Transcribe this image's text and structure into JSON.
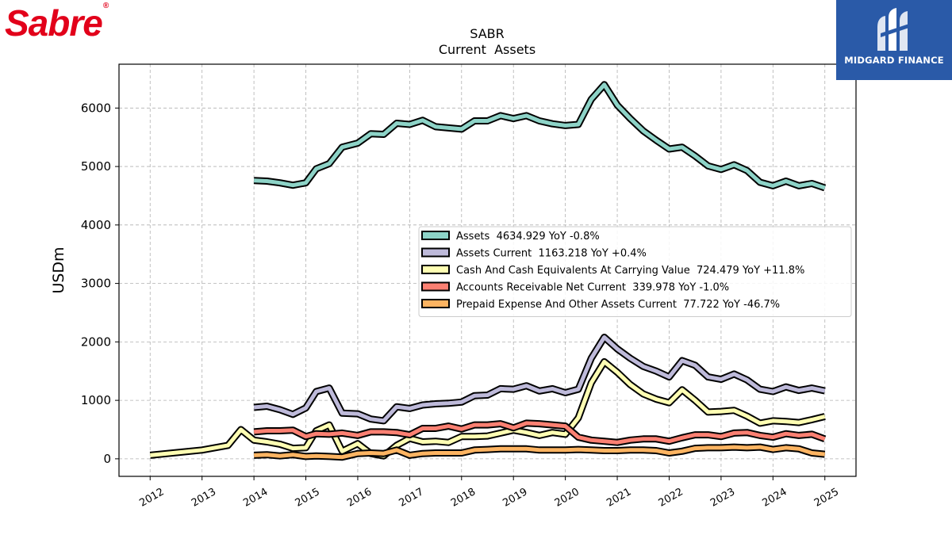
{
  "brand": {
    "left_logo": "Sabre",
    "right_logo": "MIDGARD FINANCE"
  },
  "colors": {
    "assets": "#8dd3c7",
    "assets_current": "#bebada",
    "cash": "#ffffb3",
    "receivables": "#fb8072",
    "prepaid": "#fdb462",
    "outline": "#000000",
    "grid": "#b0b0b0",
    "logo_red": "#e2001a",
    "logo_blue": "#2a5aa8"
  },
  "chart_data": {
    "type": "line",
    "title": "SABR",
    "subtitle": "Current  Assets",
    "xlabel": "",
    "ylabel": "USDm",
    "xlim": [
      2011.4,
      2025.6
    ],
    "ylim": [
      -300,
      6750
    ],
    "xticks": [
      "2012",
      "2013",
      "2014",
      "2015",
      "2016",
      "2017",
      "2018",
      "2019",
      "2020",
      "2021",
      "2022",
      "2023",
      "2024",
      "2025"
    ],
    "yticks": [
      0,
      1000,
      2000,
      3000,
      4000,
      5000,
      6000
    ],
    "grid": true,
    "legend_position": "center-right",
    "series": [
      {
        "key": "assets",
        "legend": "Assets  4634.929 YoY -0.8%",
        "points": [
          [
            2014.0,
            4760
          ],
          [
            2014.25,
            4750
          ],
          [
            2014.5,
            4720
          ],
          [
            2014.75,
            4680
          ],
          [
            2015.0,
            4720
          ],
          [
            2015.2,
            4960
          ],
          [
            2015.45,
            5050
          ],
          [
            2015.7,
            5330
          ],
          [
            2016.0,
            5400
          ],
          [
            2016.25,
            5560
          ],
          [
            2016.5,
            5550
          ],
          [
            2016.75,
            5740
          ],
          [
            2017.0,
            5720
          ],
          [
            2017.25,
            5790
          ],
          [
            2017.5,
            5680
          ],
          [
            2017.75,
            5660
          ],
          [
            2018.0,
            5640
          ],
          [
            2018.25,
            5780
          ],
          [
            2018.5,
            5780
          ],
          [
            2018.75,
            5870
          ],
          [
            2019.0,
            5820
          ],
          [
            2019.25,
            5870
          ],
          [
            2019.5,
            5780
          ],
          [
            2019.75,
            5730
          ],
          [
            2020.0,
            5700
          ],
          [
            2020.25,
            5720
          ],
          [
            2020.5,
            6150
          ],
          [
            2020.75,
            6400
          ],
          [
            2021.0,
            6050
          ],
          [
            2021.25,
            5820
          ],
          [
            2021.5,
            5610
          ],
          [
            2021.75,
            5450
          ],
          [
            2022.0,
            5300
          ],
          [
            2022.25,
            5330
          ],
          [
            2022.5,
            5180
          ],
          [
            2022.75,
            5010
          ],
          [
            2023.0,
            4950
          ],
          [
            2023.25,
            5030
          ],
          [
            2023.5,
            4930
          ],
          [
            2023.75,
            4730
          ],
          [
            2024.0,
            4670
          ],
          [
            2024.25,
            4750
          ],
          [
            2024.5,
            4670
          ],
          [
            2024.75,
            4710
          ],
          [
            2025.0,
            4635
          ]
        ]
      },
      {
        "key": "assets_current",
        "legend": "Assets Current  1163.218 YoY +0.4%",
        "points": [
          [
            2014.0,
            880
          ],
          [
            2014.25,
            900
          ],
          [
            2014.5,
            840
          ],
          [
            2014.75,
            760
          ],
          [
            2015.0,
            870
          ],
          [
            2015.2,
            1150
          ],
          [
            2015.45,
            1210
          ],
          [
            2015.7,
            780
          ],
          [
            2016.0,
            770
          ],
          [
            2016.25,
            680
          ],
          [
            2016.5,
            650
          ],
          [
            2016.75,
            890
          ],
          [
            2017.0,
            860
          ],
          [
            2017.25,
            920
          ],
          [
            2017.5,
            940
          ],
          [
            2017.75,
            950
          ],
          [
            2018.0,
            970
          ],
          [
            2018.25,
            1080
          ],
          [
            2018.5,
            1090
          ],
          [
            2018.75,
            1200
          ],
          [
            2019.0,
            1190
          ],
          [
            2019.25,
            1250
          ],
          [
            2019.5,
            1160
          ],
          [
            2019.75,
            1200
          ],
          [
            2020.0,
            1130
          ],
          [
            2020.25,
            1190
          ],
          [
            2020.5,
            1720
          ],
          [
            2020.75,
            2080
          ],
          [
            2021.0,
            1880
          ],
          [
            2021.25,
            1720
          ],
          [
            2021.5,
            1580
          ],
          [
            2021.75,
            1500
          ],
          [
            2022.0,
            1400
          ],
          [
            2022.25,
            1680
          ],
          [
            2022.5,
            1600
          ],
          [
            2022.75,
            1400
          ],
          [
            2023.0,
            1360
          ],
          [
            2023.25,
            1450
          ],
          [
            2023.5,
            1350
          ],
          [
            2023.75,
            1190
          ],
          [
            2024.0,
            1150
          ],
          [
            2024.25,
            1230
          ],
          [
            2024.5,
            1170
          ],
          [
            2024.75,
            1210
          ],
          [
            2025.0,
            1163
          ]
        ]
      },
      {
        "key": "cash",
        "legend": "Cash And Cash Equivalents At Carrying Value  724.479 YoY +11.8%",
        "points": [
          [
            2012.0,
            60
          ],
          [
            2013.0,
            150
          ],
          [
            2013.5,
            230
          ],
          [
            2013.75,
            500
          ],
          [
            2014.0,
            320
          ],
          [
            2014.25,
            290
          ],
          [
            2014.5,
            250
          ],
          [
            2014.75,
            180
          ],
          [
            2015.0,
            190
          ],
          [
            2015.2,
            480
          ],
          [
            2015.45,
            580
          ],
          [
            2015.7,
            130
          ],
          [
            2016.0,
            260
          ],
          [
            2016.25,
            90
          ],
          [
            2016.5,
            50
          ],
          [
            2016.75,
            230
          ],
          [
            2017.0,
            350
          ],
          [
            2017.25,
            290
          ],
          [
            2017.5,
            300
          ],
          [
            2017.75,
            280
          ],
          [
            2018.0,
            380
          ],
          [
            2018.25,
            380
          ],
          [
            2018.5,
            390
          ],
          [
            2018.75,
            440
          ],
          [
            2019.0,
            490
          ],
          [
            2019.25,
            450
          ],
          [
            2019.5,
            400
          ],
          [
            2019.75,
            450
          ],
          [
            2020.0,
            420
          ],
          [
            2020.25,
            700
          ],
          [
            2020.5,
            1300
          ],
          [
            2020.75,
            1660
          ],
          [
            2021.0,
            1480
          ],
          [
            2021.25,
            1270
          ],
          [
            2021.5,
            1110
          ],
          [
            2021.75,
            1020
          ],
          [
            2022.0,
            960
          ],
          [
            2022.25,
            1180
          ],
          [
            2022.5,
            1000
          ],
          [
            2022.75,
            800
          ],
          [
            2023.0,
            810
          ],
          [
            2023.25,
            830
          ],
          [
            2023.5,
            730
          ],
          [
            2023.75,
            610
          ],
          [
            2024.0,
            650
          ],
          [
            2024.25,
            640
          ],
          [
            2024.5,
            620
          ],
          [
            2024.75,
            670
          ],
          [
            2025.0,
            724
          ]
        ]
      },
      {
        "key": "receivables",
        "legend": "Accounts Receivable Net Current  339.978 YoY -1.0%",
        "points": [
          [
            2014.0,
            460
          ],
          [
            2014.25,
            480
          ],
          [
            2014.5,
            480
          ],
          [
            2014.75,
            490
          ],
          [
            2015.0,
            380
          ],
          [
            2015.2,
            430
          ],
          [
            2015.45,
            420
          ],
          [
            2015.7,
            440
          ],
          [
            2016.0,
            400
          ],
          [
            2016.25,
            460
          ],
          [
            2016.5,
            460
          ],
          [
            2016.75,
            450
          ],
          [
            2017.0,
            410
          ],
          [
            2017.25,
            520
          ],
          [
            2017.5,
            520
          ],
          [
            2017.75,
            560
          ],
          [
            2018.0,
            510
          ],
          [
            2018.25,
            580
          ],
          [
            2018.5,
            580
          ],
          [
            2018.75,
            600
          ],
          [
            2019.0,
            530
          ],
          [
            2019.25,
            610
          ],
          [
            2019.5,
            600
          ],
          [
            2019.75,
            580
          ],
          [
            2020.0,
            560
          ],
          [
            2020.25,
            370
          ],
          [
            2020.5,
            320
          ],
          [
            2020.75,
            300
          ],
          [
            2021.0,
            280
          ],
          [
            2021.25,
            320
          ],
          [
            2021.5,
            340
          ],
          [
            2021.75,
            340
          ],
          [
            2022.0,
            300
          ],
          [
            2022.25,
            360
          ],
          [
            2022.5,
            410
          ],
          [
            2022.75,
            410
          ],
          [
            2023.0,
            380
          ],
          [
            2023.25,
            440
          ],
          [
            2023.5,
            450
          ],
          [
            2023.75,
            400
          ],
          [
            2024.0,
            370
          ],
          [
            2024.25,
            430
          ],
          [
            2024.5,
            400
          ],
          [
            2024.75,
            420
          ],
          [
            2025.0,
            340
          ]
        ]
      },
      {
        "key": "prepaid",
        "legend": "Prepaid Expense And Other Assets Current  77.722 YoY -46.7%",
        "points": [
          [
            2014.0,
            60
          ],
          [
            2014.25,
            70
          ],
          [
            2014.5,
            50
          ],
          [
            2014.75,
            70
          ],
          [
            2015.0,
            40
          ],
          [
            2015.2,
            50
          ],
          [
            2015.45,
            40
          ],
          [
            2015.7,
            30
          ],
          [
            2016.0,
            90
          ],
          [
            2016.25,
            100
          ],
          [
            2016.5,
            90
          ],
          [
            2016.75,
            150
          ],
          [
            2017.0,
            60
          ],
          [
            2017.25,
            90
          ],
          [
            2017.5,
            100
          ],
          [
            2017.75,
            100
          ],
          [
            2018.0,
            100
          ],
          [
            2018.25,
            150
          ],
          [
            2018.5,
            160
          ],
          [
            2018.75,
            170
          ],
          [
            2019.0,
            170
          ],
          [
            2019.25,
            170
          ],
          [
            2019.5,
            150
          ],
          [
            2019.75,
            150
          ],
          [
            2020.0,
            150
          ],
          [
            2020.25,
            160
          ],
          [
            2020.5,
            150
          ],
          [
            2020.75,
            140
          ],
          [
            2021.0,
            140
          ],
          [
            2021.25,
            150
          ],
          [
            2021.5,
            150
          ],
          [
            2021.75,
            140
          ],
          [
            2022.0,
            100
          ],
          [
            2022.25,
            130
          ],
          [
            2022.5,
            180
          ],
          [
            2022.75,
            190
          ],
          [
            2023.0,
            190
          ],
          [
            2023.25,
            200
          ],
          [
            2023.5,
            190
          ],
          [
            2023.75,
            200
          ],
          [
            2024.0,
            160
          ],
          [
            2024.25,
            190
          ],
          [
            2024.5,
            170
          ],
          [
            2024.75,
            100
          ],
          [
            2025.0,
            78
          ]
        ]
      }
    ]
  }
}
